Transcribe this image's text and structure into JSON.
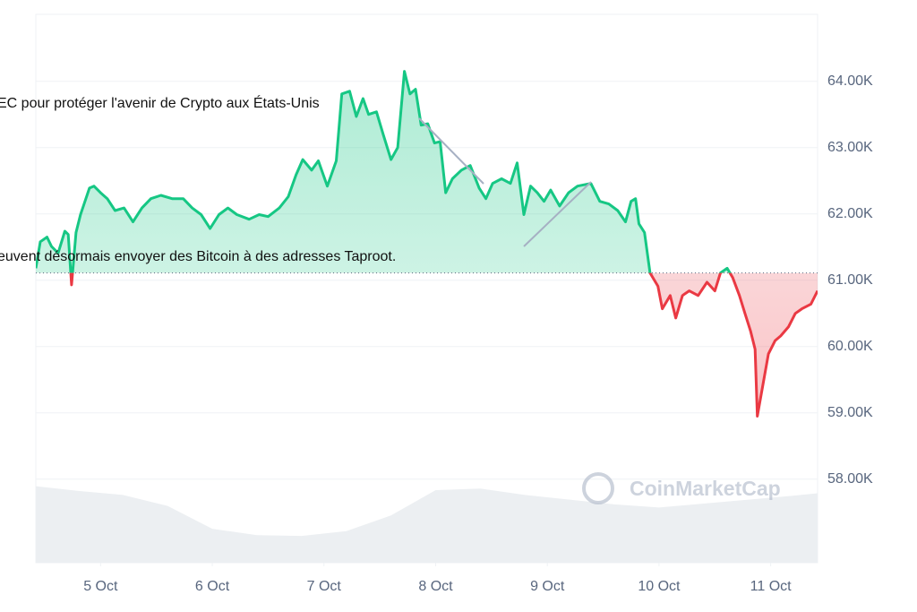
{
  "chart_data": {
    "type": "baseline-line",
    "x": [
      4.42,
      4.46,
      4.52,
      4.56,
      4.62,
      4.68,
      4.71,
      4.74,
      4.78,
      4.82,
      4.86,
      4.9,
      4.94,
      5.0,
      5.06,
      5.13,
      5.21,
      5.29,
      5.37,
      5.45,
      5.54,
      5.64,
      5.74,
      5.82,
      5.9,
      5.98,
      6.06,
      6.14,
      6.22,
      6.33,
      6.42,
      6.5,
      6.6,
      6.68,
      6.75,
      6.81,
      6.89,
      6.95,
      7.03,
      7.11,
      7.16,
      7.23,
      7.29,
      7.35,
      7.4,
      7.47,
      7.53,
      7.6,
      7.66,
      7.72,
      7.77,
      7.82,
      7.87,
      7.93,
      7.99,
      8.04,
      8.09,
      8.15,
      8.23,
      8.31,
      8.39,
      8.45,
      8.51,
      8.59,
      8.67,
      8.73,
      8.79,
      8.85,
      8.91,
      8.97,
      9.03,
      9.11,
      9.19,
      9.27,
      9.39,
      9.47,
      9.55,
      9.63,
      9.7,
      9.75,
      9.79,
      9.82,
      9.87,
      9.92,
      9.99,
      10.03,
      10.1,
      10.15,
      10.21,
      10.27,
      10.35,
      10.43,
      10.5,
      10.55,
      10.61,
      10.66,
      10.72,
      10.77,
      10.82,
      10.86,
      10.88,
      10.93,
      10.98,
      11.04,
      11.09,
      11.16,
      11.22,
      11.28,
      11.36,
      11.42
    ],
    "series": [
      {
        "name": "Price",
        "color": "#16c784",
        "color_below": "#ea3943",
        "values": [
          61180,
          61580,
          61650,
          61510,
          61410,
          61740,
          61690,
          60930,
          61720,
          61990,
          62190,
          62390,
          62420,
          62320,
          62230,
          62050,
          62090,
          61880,
          62090,
          62230,
          62280,
          62230,
          62230,
          62090,
          61990,
          61780,
          61990,
          62090,
          61990,
          61920,
          61990,
          61960,
          62090,
          62260,
          62590,
          62820,
          62660,
          62800,
          62420,
          62800,
          63810,
          63850,
          63470,
          63740,
          63500,
          63540,
          63200,
          62820,
          63000,
          64150,
          63810,
          63880,
          63340,
          63360,
          63070,
          63090,
          62320,
          62530,
          62660,
          62730,
          62390,
          62230,
          62460,
          62530,
          62460,
          62770,
          61990,
          62420,
          62320,
          62190,
          62360,
          62120,
          62320,
          62420,
          62460,
          62190,
          62150,
          62050,
          61880,
          62190,
          62230,
          61850,
          61720,
          61110,
          60910,
          60570,
          60770,
          60430,
          60770,
          60840,
          60770,
          60970,
          60840,
          61110,
          61180,
          61040,
          60770,
          60500,
          60230,
          59960,
          58950,
          59420,
          59890,
          60090,
          60160,
          60300,
          60500,
          60570,
          60640,
          60840
        ]
      }
    ],
    "baseline": 61110,
    "volume": {
      "color": "#eceff2",
      "x": [
        4.42,
        4.8,
        5.2,
        5.6,
        6.0,
        6.4,
        6.8,
        7.2,
        7.6,
        8.0,
        8.4,
        8.8,
        9.2,
        9.6,
        10.0,
        10.4,
        10.8,
        11.2,
        11.42
      ],
      "values": [
        97,
        91,
        86,
        72,
        43,
        35,
        34,
        40,
        60,
        92,
        94,
        86,
        80,
        74,
        70,
        75,
        80,
        85,
        88
      ],
      "vlim": [
        0,
        100
      ]
    },
    "xlim": [
      4.42,
      11.42
    ],
    "ylim": [
      56740,
      65010
    ],
    "xticks": [
      {
        "value": 5,
        "label": "5 Oct"
      },
      {
        "value": 6,
        "label": "6 Oct"
      },
      {
        "value": 7,
        "label": "7 Oct"
      },
      {
        "value": 8,
        "label": "8 Oct"
      },
      {
        "value": 9,
        "label": "9 Oct"
      },
      {
        "value": 10,
        "label": "10 Oct"
      },
      {
        "value": 11,
        "label": "11 Oct"
      }
    ],
    "yticks": [
      {
        "value": 58000,
        "label": "58.00K"
      },
      {
        "value": 59000,
        "label": "59.00K"
      },
      {
        "value": 60000,
        "label": "60.00K"
      },
      {
        "value": 61000,
        "label": "61.00K"
      },
      {
        "value": 62000,
        "label": "62.00K"
      },
      {
        "value": 63000,
        "label": "63.00K"
      },
      {
        "value": 64000,
        "label": "64.00K"
      }
    ],
    "grid": true,
    "annotations": [
      "EC pour protéger l'avenir de Crypto aux États-Unis",
      "euvent désormais envoyer des Bitcoin à des adresses Taproot."
    ],
    "watermark": "CoinMarketCap"
  }
}
